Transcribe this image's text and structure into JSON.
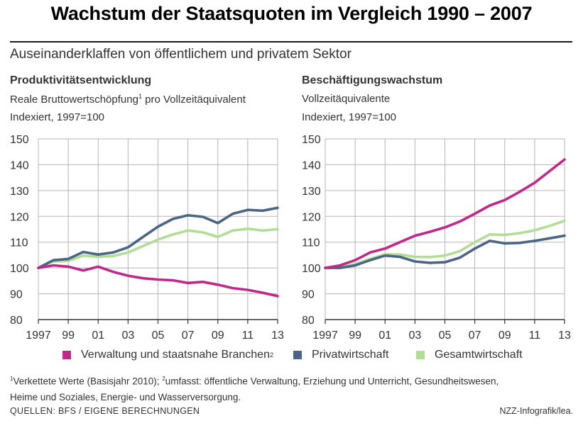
{
  "title": "Wachstum der Staatsquoten im Vergleich 1990 – 2007",
  "subtitle": "Auseinanderklaffen von öffentlichem und privatem Sektor",
  "colors": {
    "verwaltung": "#c0288a",
    "privat": "#4a6585",
    "gesamt": "#b2dd96",
    "grid": "#b5b5b5",
    "axis": "#333333"
  },
  "legend": {
    "verwaltung": "Verwaltung und staatsnahe Branchen",
    "verwaltung_sup": "2",
    "privat": "Privatwirtschaft",
    "gesamt": "Gesamtwirtschaft"
  },
  "footnote": {
    "s1": "1",
    "t1": "Verkettete Werte (Basisjahr 2010); ",
    "s2": "2",
    "t2": "umfasst: öffentliche Verwaltung, Erziehung und Unterricht, Gesundheitswesen,",
    "line2": "Heime und Soziales, Energie- und Wasserversorgung."
  },
  "source": "QUELLEN: BFS / EIGENE BERECHNUNGEN",
  "credit": "NZZ-Infografik/lea.",
  "chart_data": [
    {
      "type": "line",
      "title": "Produktivitätsentwicklung",
      "subtitle_pre": "Reale Bruttowertschöpfung",
      "subtitle_sup": "1",
      "subtitle_post": " pro Vollzeitäquivalent",
      "subtitle2": "Indexiert, 1997=100",
      "x": [
        1997,
        1998,
        1999,
        2000,
        2001,
        2002,
        2003,
        2004,
        2005,
        2006,
        2007,
        2008,
        2009,
        2010,
        2011,
        2012,
        2013
      ],
      "xtick_values": [
        1997,
        1999,
        2001,
        2003,
        2005,
        2007,
        2009,
        2011,
        2013
      ],
      "xtick_labels": [
        "1997",
        "99",
        "01",
        "03",
        "05",
        "07",
        "09",
        "11",
        "13"
      ],
      "ylim": [
        80,
        150
      ],
      "yticks": [
        80,
        90,
        100,
        110,
        120,
        130,
        140,
        150
      ],
      "grid": true,
      "series": [
        {
          "name": "Verwaltung und staatsnahe Branchen",
          "color_key": "verwaltung",
          "values": [
            100,
            101,
            100.5,
            99,
            100.5,
            98.5,
            97,
            96,
            95.5,
            95.2,
            94.2,
            94.6,
            93.5,
            92.2,
            91.5,
            90.4,
            89.1
          ]
        },
        {
          "name": "Privatwirtschaft",
          "color_key": "privat",
          "values": [
            100,
            103,
            103.5,
            106.2,
            105.2,
            106,
            108,
            112,
            116,
            119,
            120.4,
            119.8,
            117.4,
            121,
            122.5,
            122.2,
            123.3
          ]
        },
        {
          "name": "Gesamtwirtschaft",
          "color_key": "gesamt",
          "values": [
            100,
            102.5,
            102.7,
            104.8,
            104.3,
            104.6,
            106,
            108.5,
            111,
            113,
            114.5,
            113.8,
            112,
            114.5,
            115.2,
            114.5,
            115
          ]
        }
      ]
    },
    {
      "type": "line",
      "title": "Beschäftigungswachstum",
      "subtitle_pre": "Vollzeitäquivalente",
      "subtitle_sup": "",
      "subtitle_post": "",
      "subtitle2": "Indexiert, 1997=100",
      "x": [
        1997,
        1998,
        1999,
        2000,
        2001,
        2002,
        2003,
        2004,
        2005,
        2006,
        2007,
        2008,
        2009,
        2010,
        2011,
        2012,
        2013
      ],
      "xtick_values": [
        1997,
        1999,
        2001,
        2003,
        2005,
        2007,
        2009,
        2011,
        2013
      ],
      "xtick_labels": [
        "1997",
        "99",
        "01",
        "03",
        "05",
        "07",
        "09",
        "11",
        "13"
      ],
      "ylim": [
        80,
        150
      ],
      "yticks": [
        80,
        90,
        100,
        110,
        120,
        130,
        140,
        150
      ],
      "grid": true,
      "series": [
        {
          "name": "Verwaltung und staatsnahe Branchen",
          "color_key": "verwaltung",
          "values": [
            100,
            101,
            103,
            106,
            107.5,
            110,
            112.5,
            114,
            115.7,
            118,
            121,
            124.2,
            126.3,
            129.5,
            133,
            137.5,
            142
          ]
        },
        {
          "name": "Privatwirtschaft",
          "color_key": "privat",
          "values": [
            100,
            100,
            101,
            103,
            104.8,
            104.3,
            102.5,
            102,
            102.2,
            104,
            107.5,
            110.5,
            109.5,
            109.7,
            110.5,
            111.5,
            112.5
          ]
        },
        {
          "name": "Gesamtwirtschaft",
          "color_key": "gesamt",
          "values": [
            100,
            100.3,
            101.5,
            103.5,
            105.3,
            105.2,
            104.3,
            104.2,
            104.8,
            106.5,
            110,
            113,
            112.8,
            113.5,
            114.6,
            116.3,
            118.3
          ]
        }
      ]
    }
  ]
}
